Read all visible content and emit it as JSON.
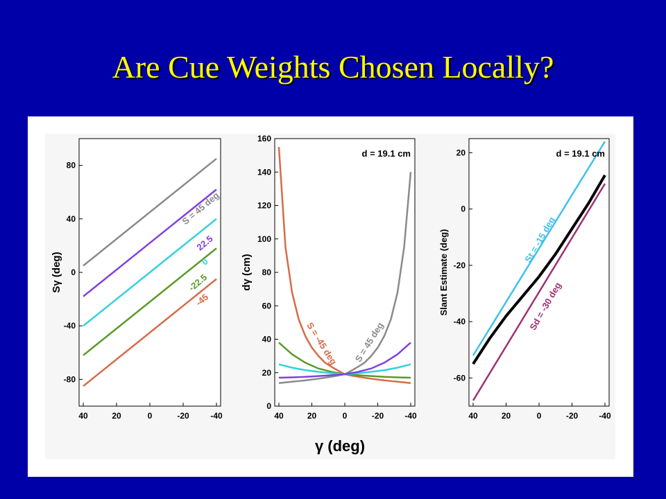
{
  "slide": {
    "title": "Are Cue Weights Chosen Locally?"
  },
  "figure": {
    "shared_xlabel": "γ (deg)"
  },
  "colors": {
    "gray": "#8a8a8a",
    "purple": "#8040e0",
    "cyan": "#30d0e0",
    "green": "#5a9a28",
    "orange": "#d86a48",
    "blue": "#40c0ec",
    "black": "#000000",
    "maroon": "#a03070"
  },
  "chart_data": [
    {
      "type": "line",
      "ylabel": "Sγ (deg)",
      "xlim": [
        40,
        -40
      ],
      "ylim": [
        -100,
        100
      ],
      "xticks": [
        40,
        20,
        0,
        -20,
        -40
      ],
      "yticks": [
        80,
        40,
        0,
        -40,
        -80
      ],
      "series": [
        {
          "name": "S = 45 deg",
          "color": "#8a8a8a",
          "x": [
            40,
            -40
          ],
          "y": [
            5,
            85
          ]
        },
        {
          "name": "22.5",
          "color": "#8040e0",
          "x": [
            40,
            -40
          ],
          "y": [
            -18,
            62
          ]
        },
        {
          "name": "0",
          "color": "#30d0e0",
          "x": [
            40,
            -40
          ],
          "y": [
            -40,
            40
          ]
        },
        {
          "name": "-22.5",
          "color": "#5a9a28",
          "x": [
            40,
            -40
          ],
          "y": [
            -62,
            18
          ]
        },
        {
          "name": "-45",
          "color": "#d86a48",
          "x": [
            40,
            -40
          ],
          "y": [
            -85,
            -5
          ]
        }
      ]
    },
    {
      "type": "line",
      "ylabel": "dγ (cm)",
      "annotation": "d = 19.1 cm",
      "xlim": [
        40,
        -40
      ],
      "ylim": [
        0,
        160
      ],
      "xticks": [
        40,
        20,
        0,
        -20,
        -40
      ],
      "yticks": [
        160,
        140,
        120,
        100,
        80,
        60,
        40,
        20,
        0
      ],
      "series": [
        {
          "name": "S = -45 deg",
          "color": "#d86a48",
          "x": [
            40,
            36,
            32,
            28,
            24,
            20,
            16,
            12,
            8,
            4,
            0,
            -4,
            -8,
            -12,
            -16,
            -20,
            -24,
            -28,
            -32,
            -36,
            -40
          ],
          "y": [
            155,
            95,
            68,
            52,
            42,
            35,
            30,
            26,
            23.5,
            21.2,
            19.1,
            18.3,
            17.6,
            17,
            16.4,
            15.9,
            15.4,
            15,
            14.6,
            14.2,
            13.8
          ]
        },
        {
          "name": "S = 45 deg",
          "color": "#8a8a8a",
          "x": [
            40,
            36,
            32,
            28,
            24,
            20,
            16,
            12,
            8,
            4,
            0,
            -4,
            -8,
            -12,
            -16,
            -20,
            -24,
            -28,
            -32,
            -36,
            -40
          ],
          "y": [
            13.8,
            14.2,
            14.6,
            15,
            15.4,
            15.9,
            16.4,
            17,
            17.6,
            18.3,
            19.1,
            21.2,
            23.5,
            26,
            30,
            35,
            42,
            52,
            68,
            95,
            140
          ]
        },
        {
          "color": "#5a9a28",
          "x": [
            40,
            32,
            24,
            16,
            8,
            0,
            -8,
            -16,
            -24,
            -32,
            -40
          ],
          "y": [
            38,
            31,
            26,
            22.5,
            20.5,
            19.1,
            18.5,
            18,
            17.5,
            17.2,
            17
          ]
        },
        {
          "color": "#30d0e0",
          "x": [
            40,
            32,
            24,
            16,
            8,
            0,
            -8,
            -16,
            -24,
            -32,
            -40
          ],
          "y": [
            25,
            23,
            21.5,
            20.5,
            19.7,
            19.1,
            19.7,
            20.5,
            21.5,
            23,
            25
          ]
        },
        {
          "color": "#8040e0",
          "x": [
            40,
            32,
            24,
            16,
            8,
            0,
            -8,
            -16,
            -24,
            -32,
            -40
          ],
          "y": [
            17,
            17.2,
            17.5,
            18,
            18.5,
            19.1,
            20.5,
            22.5,
            26,
            31,
            38
          ]
        }
      ]
    },
    {
      "type": "line",
      "ylabel": "Slant Estimate (deg)",
      "annotation": "d = 19.1 cm",
      "xlim": [
        40,
        -40
      ],
      "ylim": [
        -70,
        25
      ],
      "xticks": [
        40,
        20,
        0,
        -20,
        -40
      ],
      "yticks": [
        20,
        0,
        -20,
        -40,
        -60
      ],
      "series": [
        {
          "name": "St = -15 deg",
          "color": "#40c0ec",
          "x": [
            40,
            -40
          ],
          "y": [
            -52,
            24
          ]
        },
        {
          "color": "#000000",
          "x": [
            40,
            30,
            20,
            10,
            0,
            -10,
            -20,
            -30,
            -40
          ],
          "y": [
            -55,
            -46,
            -38,
            -31,
            -24,
            -16,
            -7,
            2,
            12
          ]
        },
        {
          "name": "Sd = -30 deg",
          "color": "#a03070",
          "x": [
            40,
            -40
          ],
          "y": [
            -68,
            9
          ]
        }
      ]
    }
  ]
}
